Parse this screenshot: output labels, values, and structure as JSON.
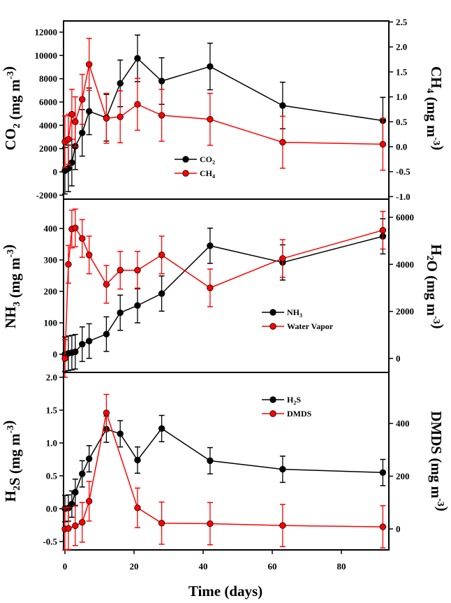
{
  "chart_data": [
    {
      "type": "line",
      "panel": "top",
      "xlabel": "Time (days)",
      "xlim": [
        0,
        95
      ],
      "ylabel_left": {
        "main": "CO",
        "sub": "2",
        "rest": " (mg m",
        "sup": "-3",
        "end": ")"
      },
      "ylabel_right": {
        "main": "CH",
        "sub": "4",
        "rest": " (mg m",
        "sup": "-3",
        "end": ")"
      },
      "ylim_left": [
        -2000,
        13000
      ],
      "ylim_right": [
        -1.0,
        2.5
      ],
      "yticks_left": [
        "-2000",
        "0",
        "2000",
        "4000",
        "6000",
        "8000",
        "10000",
        "12000"
      ],
      "yticks_right": [
        "-1.0",
        "-0.5",
        "0.0",
        "0.5",
        "1.0",
        "1.5",
        "2.0",
        "2.5"
      ],
      "series": [
        {
          "name": "CO2",
          "legend": {
            "main": "CO",
            "sub": "2"
          },
          "axis": "left",
          "color": "#000000",
          "x": [
            0,
            1,
            2,
            3,
            5,
            7,
            12,
            16,
            21,
            28,
            42,
            63,
            92
          ],
          "y": [
            100,
            300,
            800,
            2200,
            3350,
            5200,
            4650,
            7600,
            9750,
            7800,
            9050,
            5700,
            4400
          ],
          "err": [
            2000,
            2000,
            2000,
            2000,
            2000,
            2000,
            2000,
            2000,
            2000,
            2000,
            2000,
            2000,
            2000
          ]
        },
        {
          "name": "CH4",
          "legend": {
            "main": "CH",
            "sub": "4"
          },
          "axis": "right",
          "color": "#ff0000",
          "x": [
            0,
            1,
            2,
            3,
            5,
            7,
            12,
            16,
            21,
            28,
            42,
            63,
            92
          ],
          "y": [
            0.1,
            0.15,
            0.65,
            0.5,
            0.95,
            1.65,
            0.57,
            0.6,
            0.85,
            0.63,
            0.55,
            0.09,
            0.05
          ],
          "err": [
            0.52,
            0.5,
            0.5,
            0.5,
            0.5,
            0.52,
            0.5,
            0.52,
            0.52,
            0.52,
            0.52,
            0.52,
            0.52
          ]
        }
      ]
    },
    {
      "type": "line",
      "panel": "middle",
      "ylabel_left": {
        "main": "NH",
        "sub": "3",
        "rest": " (mg m",
        "sup": "-3",
        "end": ")"
      },
      "ylabel_right": {
        "main": "H",
        "sub": "2",
        "rest": "O (mg m",
        "sup": "-3",
        "end": ")"
      },
      "ylim_left": [
        -50,
        450
      ],
      "ylim_right": [
        -600,
        6600
      ],
      "yticks_left": [
        "0",
        "100",
        "200",
        "300",
        "400"
      ],
      "yticks_right": [
        "0",
        "2000",
        "4000",
        "6000"
      ],
      "series": [
        {
          "name": "NH3",
          "legend": {
            "main": "NH",
            "sub": "3"
          },
          "axis": "left",
          "color": "#000000",
          "x": [
            0,
            1,
            2,
            3,
            5,
            7,
            12,
            16,
            21,
            28,
            42,
            63,
            92
          ],
          "y": [
            0,
            3,
            5,
            8,
            32,
            42,
            64,
            132,
            155,
            193,
            345,
            292,
            375
          ],
          "err": [
            55,
            55,
            55,
            55,
            55,
            55,
            55,
            56,
            55,
            56,
            56,
            56,
            56
          ]
        },
        {
          "name": "Water Vapor",
          "legend": {
            "main": "Water Vapor",
            "sub": ""
          },
          "axis": "right",
          "color": "#ff0000",
          "x": [
            0,
            1,
            2,
            3,
            5,
            7,
            12,
            16,
            21,
            28,
            42,
            63,
            92
          ],
          "y": [
            0,
            4000,
            5500,
            5550,
            5100,
            4400,
            3150,
            3750,
            3750,
            4400,
            3000,
            4250,
            5450
          ],
          "err": [
            800,
            800,
            800,
            800,
            800,
            800,
            800,
            800,
            800,
            800,
            800,
            800,
            800
          ]
        }
      ]
    },
    {
      "type": "line",
      "panel": "bottom",
      "ylabel_left": {
        "main": "H",
        "sub": "2",
        "rest": "S (mg m",
        "sup": "-3",
        "end": ")"
      },
      "ylabel_right": {
        "main": "DMDS",
        "sub": "",
        "rest": " (mg m",
        "sup": "-3",
        "end": ")"
      },
      "ylim_left": [
        -0.6,
        2.0
      ],
      "ylim_right": [
        -80,
        600
      ],
      "yticks_left": [
        "-0.5",
        "0.0",
        "0.5",
        "1.0",
        "1.5",
        "2.0"
      ],
      "yticks_right": [
        "0",
        "200",
        "400"
      ],
      "xticks": [
        "0",
        "20",
        "40",
        "60",
        "80"
      ],
      "series": [
        {
          "name": "H2S",
          "legend": {
            "main": "H",
            "sub": "2",
            "after": "S"
          },
          "axis": "left",
          "color": "#000000",
          "x": [
            0,
            1,
            2,
            3,
            5,
            7,
            12,
            16,
            21,
            28,
            42,
            63,
            92
          ],
          "y": [
            0,
            0.01,
            0.07,
            0.25,
            0.53,
            0.76,
            1.21,
            1.14,
            0.74,
            1.22,
            0.73,
            0.6,
            0.55
          ],
          "err": [
            0.2,
            0.2,
            0.2,
            0.2,
            0.2,
            0.2,
            0.2,
            0.2,
            0.2,
            0.2,
            0.2,
            0.2,
            0.2
          ]
        },
        {
          "name": "DMDS",
          "legend": {
            "main": "DMDS",
            "sub": ""
          },
          "axis": "right",
          "color": "#ff0000",
          "x": [
            0,
            1,
            3,
            5,
            7,
            12,
            21,
            28,
            42,
            63,
            92
          ],
          "y": [
            0,
            2,
            12,
            25,
            105,
            440,
            80,
            22,
            20,
            13,
            8
          ],
          "err": [
            80,
            80,
            75,
            75,
            75,
            70,
            75,
            80,
            80,
            80,
            80
          ]
        }
      ]
    }
  ]
}
